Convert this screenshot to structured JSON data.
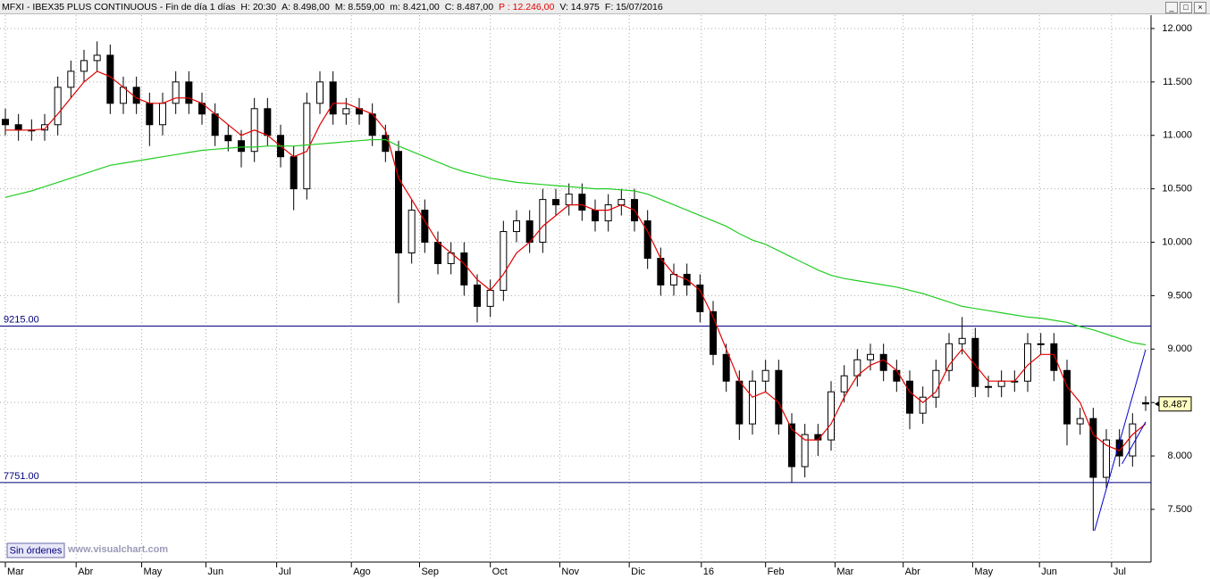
{
  "header": [
    "MFXI - IBEX35 PLUS CONTINUOUS - Fin de día 1 días",
    "H: 20:30",
    "A: 8.498,00",
    "M: 8.559,00",
    "m: 8.421,00",
    "C: 8.487,00",
    "P : 12.246,00",
    "V: 14.975",
    "F: 15/07/2016"
  ],
  "footer": {
    "button": "Sin órdenes",
    "watermark": "www.visualchart.com"
  },
  "chart_data": {
    "type": "candlestick",
    "ylim": [
      7007,
      12125
    ],
    "yticks": [
      {
        "value": 7500,
        "label": "7.500"
      },
      {
        "value": 8000,
        "label": "8.000"
      },
      {
        "value": 8500,
        "label": null
      },
      {
        "value": 9000,
        "label": "9.000"
      },
      {
        "value": 9500,
        "label": "9.500"
      },
      {
        "value": 10000,
        "label": "10.000"
      },
      {
        "value": 10500,
        "label": "10.500"
      },
      {
        "value": 11000,
        "label": "11.000"
      },
      {
        "value": 11500,
        "label": "11.500"
      },
      {
        "value": 12000,
        "label": "12.000"
      }
    ],
    "xticks": [
      {
        "value": 0,
        "label": "Mar"
      },
      {
        "value": 5.4,
        "label": "Abr"
      },
      {
        "value": 10.4,
        "label": "May"
      },
      {
        "value": 15.3,
        "label": "Jun"
      },
      {
        "value": 20.7,
        "label": "Jul"
      },
      {
        "value": 26.4,
        "label": "Ago"
      },
      {
        "value": 31.6,
        "label": "Sep"
      },
      {
        "value": 37,
        "label": "Oct"
      },
      {
        "value": 42.3,
        "label": "Nov"
      },
      {
        "value": 47.6,
        "label": "Dic"
      },
      {
        "value": 53.1,
        "label": "16"
      },
      {
        "value": 58,
        "label": "Feb"
      },
      {
        "value": 63.3,
        "label": "Mar"
      },
      {
        "value": 68.5,
        "label": "Abr"
      },
      {
        "value": 73.8,
        "label": "May"
      },
      {
        "value": 78.9,
        "label": "Jun"
      },
      {
        "value": 84.4,
        "label": "Jul"
      }
    ],
    "grid": true,
    "up_color": "#ffffff",
    "down_color": "#000000",
    "ohlc": {
      "open": [
        11150,
        11100,
        11050,
        11050,
        11100,
        11450,
        11600,
        11700,
        11750,
        11300,
        11450,
        11300,
        11100,
        11300,
        11500,
        11300,
        11200,
        11000,
        10950,
        10850,
        11250,
        11000,
        10800,
        10500,
        11300,
        11500,
        11200,
        11250,
        11200,
        11000,
        10850,
        9900,
        10300,
        10000,
        9800,
        9900,
        9600,
        9400,
        9550,
        10100,
        10200,
        10000,
        10400,
        10350,
        10450,
        10300,
        10200,
        10350,
        10400,
        10200,
        9850,
        9600,
        9700,
        9600,
        9350,
        8950,
        8700,
        8300,
        8700,
        8800,
        8300,
        7900,
        8200,
        8150,
        8600,
        8750,
        8900,
        8950,
        8800,
        8700,
        8400,
        8550,
        8800,
        9050,
        9100,
        8650,
        8650,
        8700,
        8700,
        9050,
        9050,
        8800,
        8300,
        8350,
        7800,
        8150,
        8000,
        8498
      ],
      "high": [
        11250,
        11200,
        11150,
        11200,
        11550,
        11700,
        11800,
        11880,
        11850,
        11550,
        11550,
        11400,
        11400,
        11600,
        11600,
        11400,
        11300,
        11100,
        11050,
        11350,
        11350,
        11100,
        10900,
        11400,
        11600,
        11600,
        11350,
        11350,
        11300,
        11100,
        10950,
        10400,
        10400,
        10100,
        10000,
        10000,
        9700,
        9650,
        10200,
        10300,
        10300,
        10500,
        10500,
        10550,
        10550,
        10400,
        10450,
        10500,
        10500,
        10300,
        9950,
        9800,
        9800,
        9700,
        9450,
        9050,
        8800,
        8800,
        8900,
        8900,
        8400,
        8300,
        8300,
        8700,
        8850,
        9000,
        9050,
        9050,
        8900,
        8800,
        8650,
        8900,
        9150,
        9300,
        9200,
        8750,
        8800,
        8800,
        9150,
        9150,
        9150,
        8900,
        8450,
        8450,
        8250,
        8250,
        8400,
        8559
      ],
      "low": [
        11000,
        10950,
        10950,
        10950,
        11000,
        11350,
        11500,
        11600,
        11200,
        11200,
        11200,
        10900,
        11000,
        11200,
        11200,
        11100,
        10900,
        10850,
        10700,
        10750,
        10900,
        10700,
        10300,
        10400,
        11200,
        11100,
        11100,
        11100,
        10900,
        10750,
        9430,
        9800,
        9900,
        9700,
        9700,
        9500,
        9250,
        9300,
        9450,
        10000,
        9900,
        9900,
        10250,
        10250,
        10200,
        10100,
        10100,
        10250,
        10100,
        9750,
        9500,
        9500,
        9500,
        9250,
        8850,
        8600,
        8150,
        8200,
        8600,
        8200,
        7750,
        7800,
        8000,
        8050,
        8500,
        8650,
        8800,
        8700,
        8600,
        8250,
        8300,
        8450,
        8700,
        8950,
        8550,
        8550,
        8550,
        8600,
        8600,
        8950,
        8700,
        8100,
        8200,
        7300,
        7700,
        7900,
        7900,
        8421
      ],
      "close": [
        11100,
        11050,
        11050,
        11100,
        11450,
        11600,
        11700,
        11750,
        11300,
        11450,
        11300,
        11100,
        11300,
        11500,
        11300,
        11200,
        11000,
        10950,
        10850,
        11250,
        11000,
        10800,
        10500,
        11300,
        11500,
        11200,
        11250,
        11200,
        11000,
        10850,
        9900,
        10300,
        10000,
        9800,
        9900,
        9600,
        9400,
        9550,
        10100,
        10200,
        10000,
        10400,
        10350,
        10450,
        10300,
        10200,
        10350,
        10400,
        10200,
        9850,
        9600,
        9700,
        9600,
        9350,
        8950,
        8700,
        8300,
        8700,
        8800,
        8300,
        7900,
        8200,
        8150,
        8600,
        8750,
        8900,
        8950,
        8800,
        8700,
        8400,
        8550,
        8800,
        9050,
        9100,
        8650,
        8650,
        8700,
        8700,
        9050,
        9050,
        8800,
        8300,
        8350,
        7800,
        8150,
        8000,
        8300,
        8487
      ]
    },
    "series": [
      {
        "color": "#e00000",
        "values": [
          11050,
          11050,
          11050,
          11060,
          11200,
          11350,
          11500,
          11600,
          11550,
          11450,
          11350,
          11300,
          11300,
          11350,
          11350,
          11300,
          11200,
          11100,
          11000,
          11050,
          11000,
          10900,
          10800,
          10850,
          11100,
          11300,
          11300,
          11250,
          11200,
          11050,
          10600,
          10400,
          10200,
          10000,
          9900,
          9800,
          9650,
          9550,
          9700,
          9900,
          10000,
          10150,
          10250,
          10350,
          10350,
          10300,
          10300,
          10350,
          10300,
          10100,
          9850,
          9700,
          9650,
          9550,
          9300,
          9000,
          8700,
          8550,
          8600,
          8500,
          8250,
          8150,
          8150,
          8300,
          8550,
          8750,
          8850,
          8900,
          8800,
          8600,
          8500,
          8600,
          8850,
          9000,
          8850,
          8700,
          8700,
          8700,
          8850,
          8950,
          8950,
          8650,
          8500,
          8200,
          8100,
          8050,
          8200,
          8300
        ]
      },
      {
        "color": "#22cc22",
        "values": [
          10420,
          10450,
          10480,
          10520,
          10560,
          10600,
          10640,
          10680,
          10720,
          10740,
          10760,
          10780,
          10800,
          10820,
          10840,
          10860,
          10870,
          10880,
          10890,
          10890,
          10900,
          10900,
          10900,
          10910,
          10920,
          10930,
          10940,
          10950,
          10960,
          10960,
          10900,
          10850,
          10800,
          10750,
          10700,
          10660,
          10630,
          10600,
          10580,
          10560,
          10550,
          10540,
          10530,
          10520,
          10510,
          10500,
          10500,
          10490,
          10480,
          10450,
          10400,
          10350,
          10300,
          10250,
          10200,
          10150,
          10080,
          10020,
          9980,
          9920,
          9860,
          9800,
          9740,
          9690,
          9660,
          9640,
          9620,
          9600,
          9580,
          9550,
          9520,
          9480,
          9440,
          9400,
          9380,
          9360,
          9340,
          9320,
          9300,
          9290,
          9270,
          9250,
          9210,
          9180,
          9140,
          9100,
          9060,
          9040
        ]
      }
    ],
    "hlines": [
      {
        "value": 9215,
        "label": "9215.00"
      },
      {
        "value": 7751,
        "label": "7751.00"
      }
    ],
    "trendlines": [
      {
        "x": [
          83.1,
          87
        ],
        "y": [
          7300,
          8995
        ]
      },
      {
        "x": [
          85.2,
          87
        ],
        "y": [
          7926,
          8319
        ]
      }
    ],
    "last_price": {
      "value": 8487,
      "label": "8.487"
    }
  }
}
